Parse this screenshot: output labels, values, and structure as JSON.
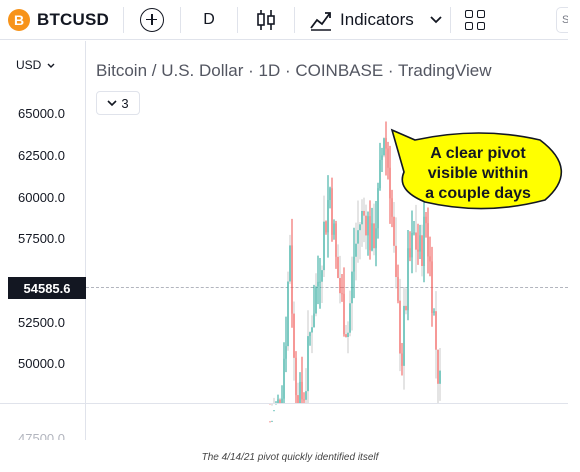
{
  "toolbar": {
    "symbol": "BTCUSD",
    "btc_glyph": "B",
    "interval": "D",
    "indicators_label": "Indicators",
    "edge_label": "S"
  },
  "chart": {
    "title": "Bitcoin / U.S. Dollar · 1D · COINBASE · TradingView",
    "currency": "USD",
    "collapse_count": "3",
    "current_price": "54585.6",
    "price_ticks": [
      "65000.0",
      "62500.0",
      "60000.0",
      "57500.0",
      "52500.0",
      "50000.0"
    ],
    "partial_bottom_tick": "47500.0",
    "colors": {
      "up": "#26a69a",
      "down": "#ef5350",
      "candle_faint": "#c9c9c9",
      "callout_fill": "#ffff00"
    }
  },
  "annotation": {
    "lines": [
      "A clear pivot",
      "visible within",
      "a couple days"
    ]
  },
  "caption": "The 4/14/21 pivot quickly identified itself"
}
